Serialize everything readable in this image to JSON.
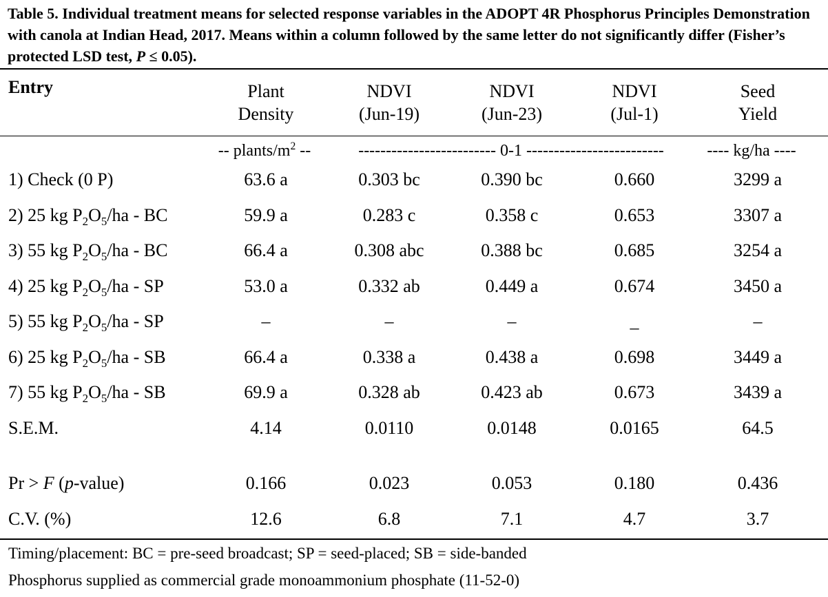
{
  "caption": {
    "part1": "Table 5. Individual treatment means for selected response variables in the ADOPT 4R Phosphorus Principles Demonstration with canola at Indian Head, 2017. Means within a column followed by the same letter do not significantly differ (Fisher’s protected LSD test, ",
    "p_symbol": "P",
    "part2": " ≤ 0.05)."
  },
  "headers": {
    "entry": "Entry",
    "cols": [
      {
        "line1": "Plant",
        "line2": "Density"
      },
      {
        "line1": "NDVI",
        "line2": "(Jun-19)"
      },
      {
        "line1": "NDVI",
        "line2": "(Jun-23)"
      },
      {
        "line1": "NDVI",
        "line2": "(Jul-1)"
      },
      {
        "line1": "Seed",
        "line2": "Yield"
      }
    ]
  },
  "units": {
    "density_prefix": "-- plants/m",
    "density_sup": "2",
    "density_suffix": " --",
    "ndvi": "------------------------- 0-1 -------------------------",
    "yield": "---- kg/ha ----"
  },
  "rows": [
    {
      "entry_pre": "1) Check (0 P)",
      "density": "63.6 a",
      "ndvi1": "0.303 bc",
      "ndvi2": "0.390 bc",
      "ndvi3": "0.660",
      "yield": "3299 a"
    },
    {
      "entry_pre": "2) 25 kg P",
      "sub1": "2",
      "mid": "O",
      "sub2": "5",
      "entry_post": "/ha - BC",
      "density": "59.9 a",
      "ndvi1": "0.283 c",
      "ndvi2": "0.358 c",
      "ndvi3": "0.653",
      "yield": "3307 a"
    },
    {
      "entry_pre": "3) 55 kg P",
      "sub1": "2",
      "mid": "O",
      "sub2": "5",
      "entry_post": "/ha - BC",
      "density": "66.4 a",
      "ndvi1": "0.308 abc",
      "ndvi2": "0.388 bc",
      "ndvi3": "0.685",
      "yield": "3254 a"
    },
    {
      "entry_pre": "4) 25 kg P",
      "sub1": "2",
      "mid": "O",
      "sub2": "5",
      "entry_post": "/ha - SP",
      "density": "53.0 a",
      "ndvi1": "0.332 ab",
      "ndvi2": "0.449 a",
      "ndvi3": "0.674",
      "yield": "3450 a"
    },
    {
      "entry_pre": "5) 55 kg P",
      "sub1": "2",
      "mid": "O",
      "sub2": "5",
      "entry_post": "/ha - SP",
      "density": "–",
      "ndvi1": "–",
      "ndvi2": "–",
      "ndvi3": "_",
      "yield": "–"
    },
    {
      "entry_pre": "6) 25 kg P",
      "sub1": "2",
      "mid": "O",
      "sub2": "5",
      "entry_post": "/ha - SB",
      "density": "66.4 a",
      "ndvi1": "0.338 a",
      "ndvi2": "0.438 a",
      "ndvi3": "0.698",
      "yield": "3449 a"
    },
    {
      "entry_pre": "7) 55 kg P",
      "sub1": "2",
      "mid": "O",
      "sub2": "5",
      "entry_post": "/ha - SB",
      "density": "69.9 a",
      "ndvi1": "0.328 ab",
      "ndvi2": "0.423 ab",
      "ndvi3": "0.673",
      "yield": "3439 a"
    },
    {
      "entry_pre": "S.E.M.",
      "density": "4.14",
      "ndvi1": "0.0110",
      "ndvi2": "0.0148",
      "ndvi3": "0.0165",
      "yield": "64.5"
    }
  ],
  "stats": [
    {
      "label_pre": "Pr > ",
      "label_italic": "F",
      "label_mid": " (",
      "label_italic2": "p",
      "label_post": "-value)",
      "density": "0.166",
      "ndvi1": "0.023",
      "ndvi2": "0.053",
      "ndvi3": "0.180",
      "yield": "0.436"
    },
    {
      "label_pre": "C.V. (%)",
      "density": "12.6",
      "ndvi1": "6.8",
      "ndvi2": "7.1",
      "ndvi3": "4.7",
      "yield": "3.7"
    }
  ],
  "footnotes": [
    "Timing/placement: BC = pre-seed broadcast; SP = seed-placed; SB = side-banded",
    "Phosphorus supplied as commercial grade monoammonium phosphate (11-52-0)"
  ]
}
